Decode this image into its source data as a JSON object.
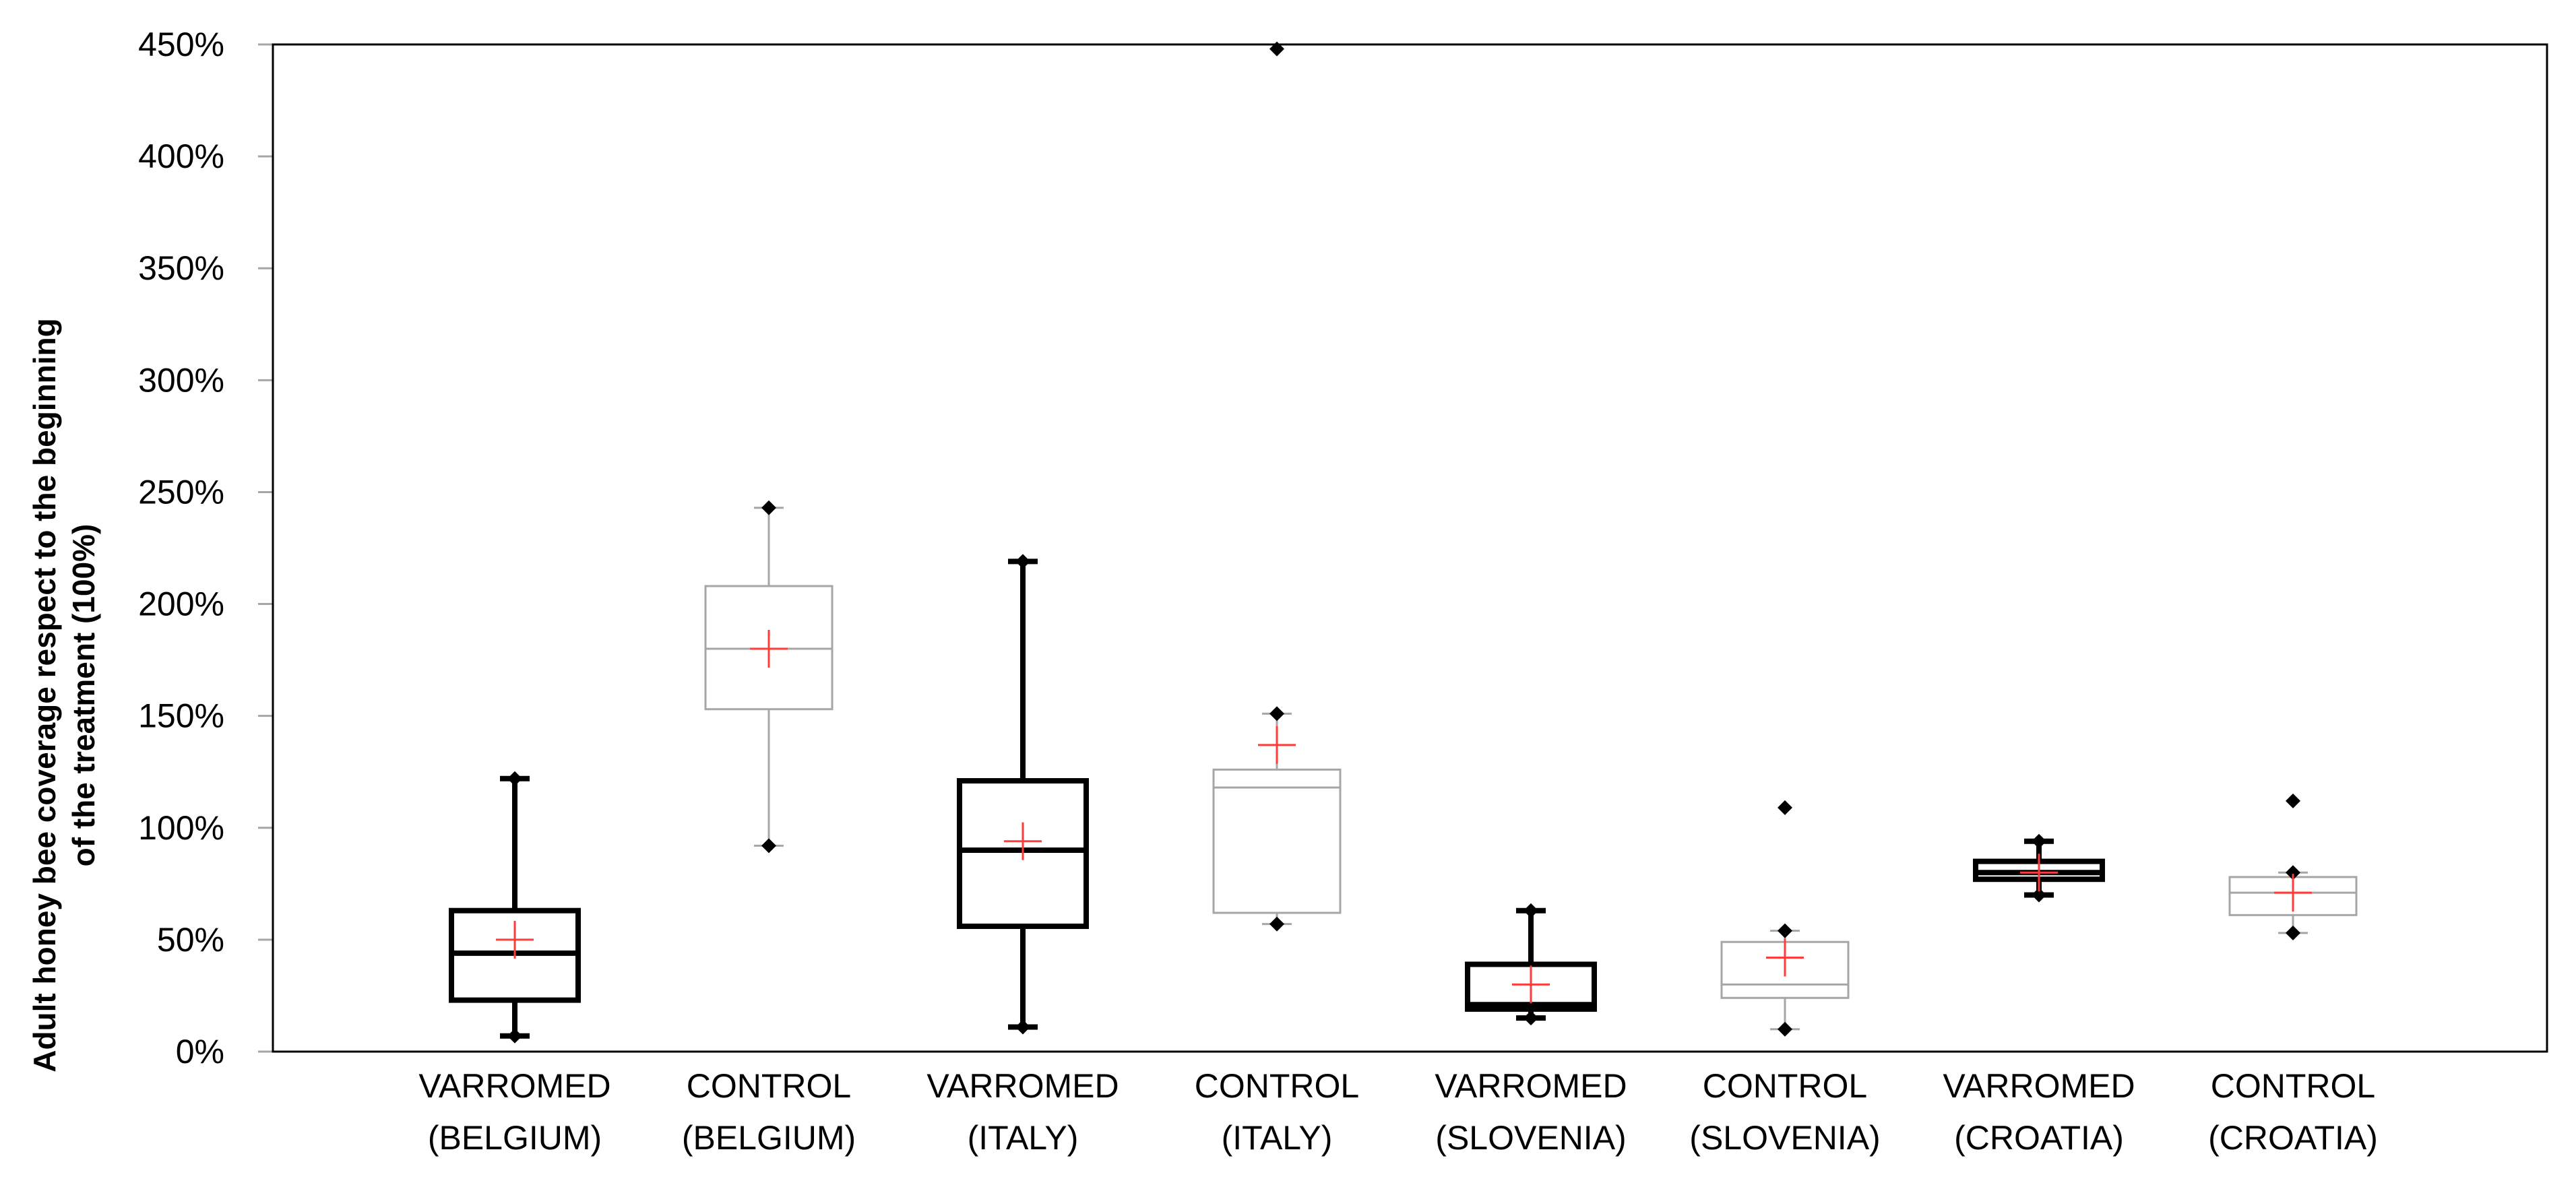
{
  "chart_data": {
    "type": "boxplot",
    "title": "",
    "xlabel": "",
    "ylabel_lines": [
      "Adult honey bee coverage respect to the beginning",
      "of the treatment (100%)"
    ],
    "ylim": [
      0,
      450
    ],
    "yticks": [
      0,
      50,
      100,
      150,
      200,
      250,
      300,
      350,
      400,
      450
    ],
    "ytick_labels": [
      "0%",
      "50%",
      "100%",
      "150%",
      "200%",
      "250%",
      "300%",
      "350%",
      "400%",
      "450%"
    ],
    "grid": false,
    "series": [
      {
        "name": "VARROMED (BELGIUM)",
        "label_lines": [
          "VARROMED",
          "(BELGIUM)"
        ],
        "group": "VARROMED",
        "min": 7,
        "q1": 23,
        "median": 44,
        "q3": 63,
        "max": 122,
        "mean": 50,
        "outliers": []
      },
      {
        "name": "CONTROL (BELGIUM)",
        "label_lines": [
          "CONTROL",
          "(BELGIUM)"
        ],
        "group": "CONTROL",
        "min": 92,
        "q1": 153,
        "median": 180,
        "q3": 208,
        "max": 243,
        "mean": 180,
        "outliers": []
      },
      {
        "name": "VARROMED (ITALY)",
        "label_lines": [
          "VARROMED",
          "(ITALY)"
        ],
        "group": "VARROMED",
        "min": 11,
        "q1": 56,
        "median": 90,
        "q3": 121,
        "max": 219,
        "mean": 94,
        "outliers": []
      },
      {
        "name": "CONTROL (ITALY)",
        "label_lines": [
          "CONTROL",
          "(ITALY)"
        ],
        "group": "CONTROL",
        "min": 57,
        "q1": 62,
        "median": 118,
        "q3": 126,
        "max": 151,
        "mean": 137,
        "outliers": [
          448
        ]
      },
      {
        "name": "VARROMED (SLOVENIA)",
        "label_lines": [
          "VARROMED",
          "(SLOVENIA)"
        ],
        "group": "VARROMED",
        "min": 15,
        "q1": 19,
        "median": 21,
        "q3": 39,
        "max": 63,
        "mean": 30,
        "outliers": []
      },
      {
        "name": "CONTROL (SLOVENIA)",
        "label_lines": [
          "CONTROL",
          "(SLOVENIA)"
        ],
        "group": "CONTROL",
        "min": 10,
        "q1": 24,
        "median": 30,
        "q3": 49,
        "max": 54,
        "mean": 42,
        "outliers": [
          109
        ]
      },
      {
        "name": "VARROMED (CROATIA)",
        "label_lines": [
          "VARROMED",
          "(CROATIA)"
        ],
        "group": "VARROMED",
        "min": 70,
        "q1": 77,
        "median": 80,
        "q3": 85,
        "max": 94,
        "mean": 80,
        "outliers": []
      },
      {
        "name": "CONTROL (CROATIA)",
        "label_lines": [
          "CONTROL",
          "(CROATIA)"
        ],
        "group": "CONTROL",
        "min": 53,
        "q1": 61,
        "median": 71,
        "q3": 78,
        "max": 80,
        "mean": 71,
        "outliers": [
          112
        ]
      }
    ],
    "colors": {
      "VARROMED": "#000000",
      "CONTROL": "#a6a6a6",
      "mean_marker": "#ff3b3b",
      "axis": "#000000",
      "tick": "#a6a6a6"
    }
  }
}
